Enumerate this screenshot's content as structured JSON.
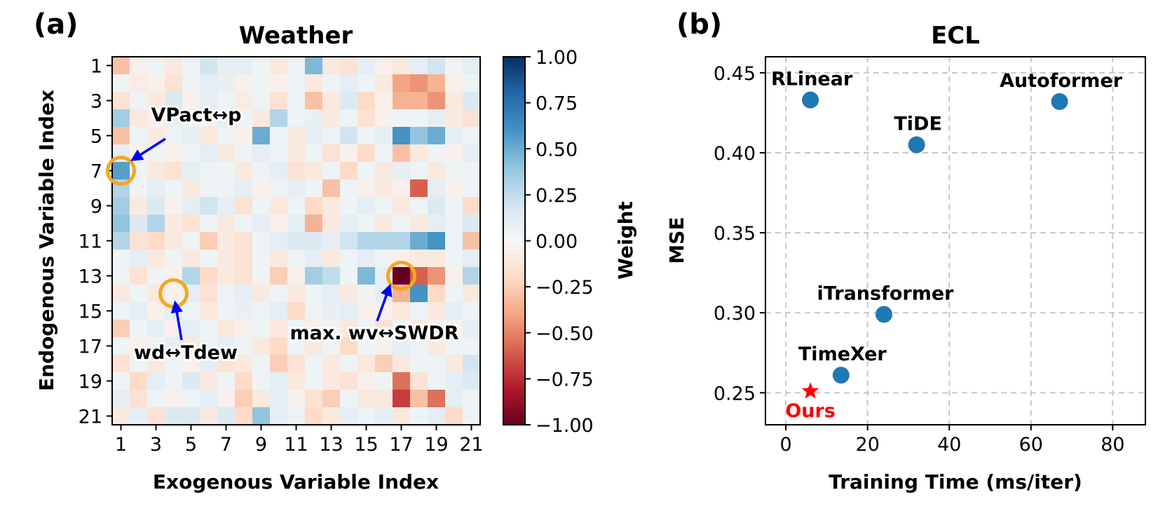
{
  "chart_data": [
    {
      "type": "heatmap",
      "panel_label": "(a)",
      "title": "Weather",
      "xlabel": "Exogenous Variable Index",
      "ylabel": "Endogenous Variable Index",
      "colorbar_label": "Weight",
      "x_ticks": [
        "1",
        "3",
        "5",
        "7",
        "9",
        "11",
        "13",
        "15",
        "17",
        "19",
        "21"
      ],
      "y_ticks": [
        "1",
        "3",
        "5",
        "7",
        "9",
        "11",
        "13",
        "15",
        "17",
        "19",
        "21"
      ],
      "colorbar_range": [
        -1.0,
        1.0
      ],
      "colorbar_ticks": [
        "1.00",
        "0.75",
        "0.50",
        "0.25",
        "0.00",
        "−0.25",
        "−0.50",
        "−0.75",
        "−1.00"
      ],
      "colormap": [
        "#67001f",
        "#b2182b",
        "#d6604d",
        "#f4a582",
        "#fddbc7",
        "#f7f7f7",
        "#d1e5f0",
        "#92c5de",
        "#4393c3",
        "#2166ac",
        "#053061"
      ],
      "highlight_color": "#f5a623",
      "arrow_color": "#0000ff",
      "matrix": [
        [
          -0.3,
          -0.05,
          0.05,
          -0.1,
          0.05,
          0.2,
          0.1,
          0.1,
          0.05,
          -0.1,
          0.05,
          0.45,
          -0.1,
          -0.15,
          0.1,
          -0.05,
          -0.1,
          0.1,
          0.2,
          0.05,
          0.1
        ],
        [
          0.05,
          -0.08,
          -0.05,
          -0.15,
          0.05,
          0.1,
          0.08,
          -0.05,
          0.05,
          -0.05,
          0.05,
          -0.1,
          0.05,
          0.1,
          0.05,
          -0.1,
          -0.4,
          -0.45,
          -0.35,
          -0.05,
          0.05
        ],
        [
          -0.15,
          0.05,
          -0.1,
          0.15,
          -0.05,
          0.1,
          0.05,
          -0.08,
          0.05,
          -0.15,
          0.05,
          -0.3,
          -0.1,
          0.15,
          -0.2,
          -0.05,
          -0.35,
          -0.35,
          -0.45,
          -0.1,
          0.15
        ],
        [
          0.35,
          -0.1,
          -0.05,
          0.1,
          0.05,
          -0.05,
          0.1,
          0.05,
          -0.1,
          0.3,
          0.05,
          0.08,
          -0.1,
          0.05,
          -0.15,
          -0.05,
          0.05,
          0.05,
          0.1,
          -0.1,
          -0.15
        ],
        [
          -0.3,
          0.05,
          -0.1,
          0.05,
          0.1,
          -0.1,
          0.05,
          -0.05,
          0.5,
          0.05,
          -0.1,
          0.1,
          0.05,
          0.2,
          0.05,
          0.1,
          0.6,
          0.4,
          0.5,
          0.1,
          0.05
        ],
        [
          0.1,
          -0.05,
          0.05,
          -0.05,
          0.05,
          0.1,
          -0.1,
          0.05,
          0.1,
          0.05,
          -0.1,
          0.05,
          -0.15,
          -0.05,
          -0.2,
          0.05,
          -0.3,
          -0.1,
          0.05,
          -0.05,
          0.1
        ],
        [
          0.55,
          0.05,
          -0.1,
          -0.15,
          0.1,
          0.05,
          0.05,
          -0.1,
          0.05,
          0.1,
          -0.15,
          -0.1,
          0.05,
          -0.2,
          0.05,
          -0.1,
          0.1,
          0.05,
          -0.1,
          0.05,
          0.05
        ],
        [
          0.3,
          0.05,
          0.1,
          0.05,
          -0.1,
          0.05,
          0.05,
          0.1,
          -0.05,
          0.05,
          0.1,
          0.05,
          -0.3,
          0.05,
          -0.05,
          -0.1,
          -0.05,
          -0.6,
          0.1,
          -0.05,
          0.05
        ],
        [
          0.35,
          -0.1,
          0.15,
          -0.05,
          0.1,
          0.2,
          0.1,
          -0.15,
          0.05,
          -0.1,
          0.05,
          -0.2,
          -0.1,
          0.05,
          0.1,
          0.05,
          -0.1,
          0.05,
          0.15,
          0.05,
          -0.2
        ],
        [
          0.4,
          0.15,
          0.3,
          -0.1,
          -0.15,
          0.05,
          -0.1,
          0.05,
          0.1,
          -0.05,
          0.1,
          -0.35,
          -0.1,
          0.1,
          0.05,
          -0.1,
          0.05,
          -0.1,
          0.1,
          0.05,
          0.15
        ],
        [
          0.3,
          -0.15,
          -0.2,
          -0.1,
          0.05,
          -0.25,
          -0.1,
          -0.15,
          0.05,
          0.1,
          0.15,
          0.15,
          0.1,
          0.2,
          0.3,
          0.3,
          0.3,
          0.5,
          0.6,
          0.05,
          -0.3
        ],
        [
          0.05,
          0.1,
          -0.1,
          0.05,
          -0.1,
          0.05,
          -0.1,
          -0.15,
          0.05,
          -0.1,
          0.05,
          0.1,
          -0.1,
          0.05,
          0.1,
          0.05,
          -0.05,
          -0.1,
          -0.1,
          0.05,
          0.1
        ],
        [
          0.05,
          -0.15,
          0.05,
          -0.05,
          0.3,
          -0.2,
          -0.1,
          -0.15,
          0.05,
          -0.25,
          -0.05,
          0.35,
          0.25,
          0.05,
          0.45,
          0.1,
          -1.0,
          -0.6,
          -0.45,
          -0.05,
          0.3
        ],
        [
          -0.1,
          0.05,
          -0.1,
          -0.05,
          0.1,
          -0.15,
          0.05,
          0.1,
          -0.1,
          0.05,
          -0.1,
          0.05,
          0.1,
          -0.1,
          0.05,
          0.1,
          -0.35,
          0.6,
          -0.2,
          0.05,
          -0.1
        ],
        [
          0.05,
          0.1,
          -0.05,
          0.1,
          0.05,
          -0.1,
          0.05,
          0.08,
          0.05,
          0.1,
          -0.2,
          0.05,
          0.08,
          0.1,
          -0.05,
          -0.05,
          -0.1,
          0.05,
          -0.1,
          0.1,
          0.05
        ],
        [
          -0.25,
          0.05,
          0.1,
          -0.05,
          0.1,
          0.05,
          -0.1,
          -0.05,
          0.05,
          -0.1,
          0.05,
          -0.05,
          0.05,
          -0.1,
          0.05,
          -0.15,
          0.05,
          -0.1,
          0.05,
          -0.05,
          0.1
        ],
        [
          0.05,
          -0.05,
          0.05,
          0.1,
          -0.1,
          0.05,
          0.1,
          0.05,
          -0.1,
          -0.2,
          0.05,
          -0.1,
          0.05,
          -0.2,
          0.05,
          -0.05,
          0.1,
          0.05,
          -0.1,
          0.05,
          0.05
        ],
        [
          -0.15,
          0.05,
          -0.1,
          0.05,
          -0.05,
          0.1,
          -0.15,
          -0.1,
          0.05,
          -0.25,
          -0.15,
          0.05,
          -0.1,
          0.05,
          -0.1,
          -0.25,
          -0.1,
          0.05,
          0.05,
          -0.1,
          0.2
        ],
        [
          0.05,
          -0.2,
          0.1,
          0.05,
          0.15,
          -0.1,
          0.05,
          -0.2,
          0.05,
          0.1,
          -0.1,
          0.05,
          -0.1,
          -0.15,
          -0.05,
          0.05,
          -0.55,
          -0.15,
          0.05,
          0.1,
          0.15
        ],
        [
          0.1,
          -0.15,
          0.05,
          -0.05,
          0.05,
          0.1,
          -0.05,
          -0.25,
          -0.1,
          0.1,
          -0.05,
          -0.15,
          -0.25,
          0.05,
          -0.1,
          -0.1,
          -0.7,
          -0.3,
          -0.55,
          0.1,
          0.05
        ],
        [
          -0.1,
          0.1,
          -0.15,
          0.15,
          0.15,
          -0.1,
          0.15,
          -0.2,
          0.4,
          0.1,
          0.05,
          -0.2,
          -0.1,
          0.1,
          0.05,
          0.1,
          -0.1,
          0.05,
          0.1,
          -0.2,
          0.05
        ]
      ],
      "annotations": [
        {
          "text": "VPact↔p",
          "row": 7,
          "col": 1
        },
        {
          "text": "wd↔Tdew",
          "row": 14,
          "col": 4
        },
        {
          "text": "max. wv↔SWDR",
          "row": 13,
          "col": 17
        }
      ]
    },
    {
      "type": "scatter",
      "panel_label": "(b)",
      "title": "ECL",
      "xlabel": "Training Time (ms/iter)",
      "ylabel": "MSE",
      "xlim": [
        -5,
        88
      ],
      "ylim": [
        0.23,
        0.46
      ],
      "x_ticks": [
        0,
        20,
        40,
        60,
        80
      ],
      "y_ticks": [
        0.25,
        0.3,
        0.35,
        0.4,
        0.45
      ],
      "x_tick_labels": [
        "0",
        "20",
        "40",
        "60",
        "80"
      ],
      "y_tick_labels": [
        "0.25",
        "0.30",
        "0.35",
        "0.40",
        "0.45"
      ],
      "grid": true,
      "points": [
        {
          "name": "RLinear",
          "x": 6,
          "y": 0.433,
          "color": "#1f77b4",
          "marker": "circle"
        },
        {
          "name": "Autoformer",
          "x": 67,
          "y": 0.432,
          "color": "#1f77b4",
          "marker": "circle"
        },
        {
          "name": "TiDE",
          "x": 32,
          "y": 0.405,
          "color": "#1f77b4",
          "marker": "circle"
        },
        {
          "name": "iTransformer",
          "x": 24,
          "y": 0.299,
          "color": "#1f77b4",
          "marker": "circle"
        },
        {
          "name": "TimeXer",
          "x": 13.5,
          "y": 0.261,
          "color": "#1f77b4",
          "marker": "circle"
        },
        {
          "name": "Ours",
          "x": 6,
          "y": 0.251,
          "color": "#ff0000",
          "marker": "star"
        }
      ]
    }
  ]
}
